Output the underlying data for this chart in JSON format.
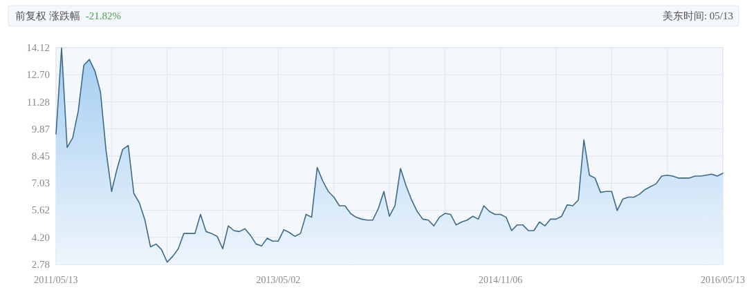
{
  "chart_data": {
    "type": "area",
    "title": "前复权 涨跌幅",
    "annotations": [
      "-21.82%",
      "美东时间: 05/13"
    ],
    "categories": [
      "2011/05/13",
      null,
      null,
      null,
      null,
      null,
      null,
      null,
      null,
      null,
      null,
      null,
      null,
      null,
      null,
      null,
      null,
      null,
      null,
      null,
      null,
      null,
      null,
      null,
      null,
      null,
      null,
      null,
      null,
      null,
      null,
      null,
      null,
      null,
      null,
      null,
      null,
      null,
      null,
      null,
      "2013/05/02",
      null,
      null,
      null,
      null,
      null,
      null,
      null,
      null,
      null,
      null,
      null,
      null,
      null,
      null,
      null,
      null,
      null,
      null,
      null,
      null,
      null,
      null,
      null,
      null,
      null,
      null,
      null,
      null,
      null,
      null,
      null,
      null,
      null,
      null,
      null,
      null,
      null,
      null,
      null,
      "2014/11/06",
      null,
      null,
      null,
      null,
      null,
      null,
      null,
      null,
      null,
      null,
      null,
      null,
      null,
      null,
      null,
      null,
      null,
      null,
      null,
      null,
      null,
      null,
      null,
      null,
      null,
      null,
      null,
      null,
      null,
      null,
      null,
      null,
      null,
      null,
      null,
      null,
      null,
      null,
      null,
      "2016/05/13"
    ],
    "values": [
      9.6,
      14.1,
      8.9,
      9.4,
      10.8,
      13.2,
      13.5,
      12.9,
      11.8,
      8.75,
      6.6,
      7.8,
      8.8,
      9.0,
      6.5,
      6.0,
      5.1,
      3.7,
      3.85,
      3.55,
      2.9,
      3.2,
      3.6,
      4.4,
      4.4,
      4.4,
      5.4,
      4.5,
      4.4,
      4.25,
      3.6,
      4.8,
      4.55,
      4.5,
      4.65,
      4.3,
      3.85,
      3.75,
      4.15,
      4.0,
      4.0,
      4.6,
      4.45,
      4.25,
      4.4,
      5.4,
      5.25,
      7.85,
      7.15,
      6.6,
      6.3,
      5.85,
      5.85,
      5.45,
      5.25,
      5.15,
      5.1,
      5.1,
      5.7,
      6.6,
      5.3,
      5.85,
      7.8,
      6.9,
      6.15,
      5.55,
      5.15,
      5.1,
      4.8,
      5.25,
      5.45,
      5.4,
      4.85,
      5.0,
      5.1,
      5.3,
      5.15,
      5.85,
      5.55,
      5.4,
      5.4,
      5.25,
      4.55,
      4.85,
      4.85,
      4.55,
      4.55,
      5.0,
      4.8,
      5.15,
      5.15,
      5.3,
      5.9,
      5.85,
      6.15,
      9.3,
      7.45,
      7.3,
      6.55,
      6.6,
      6.6,
      5.6,
      6.2,
      6.3,
      6.3,
      6.45,
      6.7,
      6.85,
      7.0,
      7.4,
      7.45,
      7.4,
      7.3,
      7.3,
      7.3,
      7.4,
      7.4,
      7.45,
      7.5,
      7.4,
      7.55
    ],
    "color": "#3e6a88",
    "ylim": [
      2.78,
      14.12
    ],
    "yticks": [
      2.78,
      {
        "value": 4.2,
        "label": "4.20"
      },
      5.62,
      7.03,
      8.45,
      9.87,
      11.28,
      {
        "value": 12.7,
        "label": "12.70"
      },
      14.12
    ],
    "grid": true
  }
}
